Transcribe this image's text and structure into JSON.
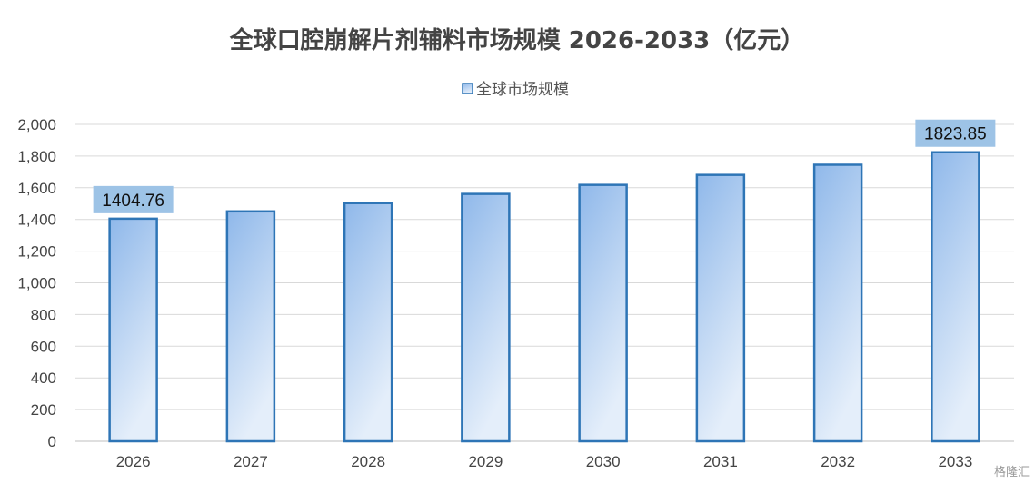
{
  "chart_data": {
    "type": "bar",
    "title": "全球口腔崩解片剂辅料市场规模 2026-2033（亿元）",
    "categories": [
      "2026",
      "2027",
      "2028",
      "2029",
      "2030",
      "2031",
      "2032",
      "2033"
    ],
    "series": [
      {
        "name": "全球市场规模",
        "values": [
          1404.76,
          1451,
          1503,
          1561,
          1618,
          1681,
          1745,
          1823.85
        ],
        "data_labels": {
          "0": "1404.76",
          "7": "1823.85"
        }
      }
    ],
    "ylim": [
      0,
      2000
    ],
    "yticks": [
      "0",
      "200",
      "400",
      "600",
      "800",
      "1,000",
      "1,200",
      "1,400",
      "1,600",
      "1,800",
      "2,000"
    ],
    "ytick_values": [
      0,
      200,
      400,
      600,
      800,
      1000,
      1200,
      1400,
      1600,
      1800,
      2000
    ],
    "grid": true,
    "legend_position": "top-center",
    "colors": {
      "bar_stroke": "#2e75b6",
      "bar_fill_top": "#8fb8ea",
      "bar_fill_bottom": "#e4eefa",
      "label_bg": "#9dc3e6"
    }
  },
  "watermark": {
    "text": "格隆汇"
  }
}
